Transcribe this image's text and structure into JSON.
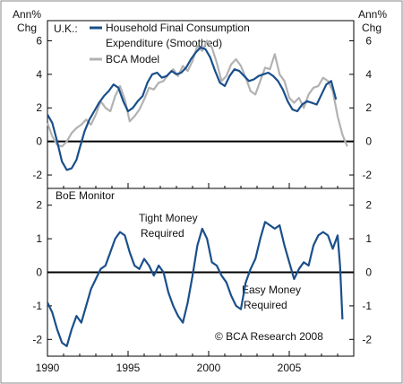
{
  "chart_data": [
    {
      "type": "line",
      "panel": "top",
      "title": "U.K.:",
      "y_unit_left": [
        "Ann%",
        "Chg"
      ],
      "y_unit_right": [
        "Ann%",
        "Chg"
      ],
      "xlim": [
        1990,
        2009
      ],
      "ylim": [
        -2.8,
        7.2
      ],
      "yticks": [
        "-2",
        "0",
        "2",
        "4",
        "6"
      ],
      "zero_line": true,
      "legend_placement": "top-left",
      "series": [
        {
          "name": "Household Final Consumption Expenditure (Smoothed)",
          "color": "#1a4f8b",
          "x": [
            1990.0,
            1990.3,
            1990.6,
            1990.9,
            1991.2,
            1991.5,
            1991.8,
            1992.0,
            1992.3,
            1992.6,
            1992.9,
            1993.2,
            1993.5,
            1993.8,
            1994.1,
            1994.4,
            1994.7,
            1995.0,
            1995.3,
            1995.6,
            1995.9,
            1996.2,
            1996.5,
            1996.8,
            1997.1,
            1997.4,
            1997.7,
            1998.0,
            1998.3,
            1998.6,
            1998.9,
            1999.2,
            1999.5,
            1999.8,
            2000.1,
            2000.4,
            2000.7,
            2001.0,
            2001.3,
            2001.6,
            2001.9,
            2002.2,
            2002.5,
            2002.8,
            2003.1,
            2003.4,
            2003.7,
            2004.0,
            2004.3,
            2004.6,
            2004.9,
            2005.2,
            2005.5,
            2005.8,
            2006.1,
            2006.4,
            2006.7,
            2007.0,
            2007.3,
            2007.6,
            2007.9
          ],
          "y": [
            1.6,
            1.1,
            0.0,
            -1.2,
            -1.7,
            -1.6,
            -1.1,
            -0.4,
            0.6,
            1.3,
            1.8,
            2.3,
            2.7,
            3.0,
            3.4,
            3.2,
            2.4,
            1.8,
            2.0,
            2.4,
            2.7,
            3.5,
            4.0,
            4.1,
            3.8,
            3.9,
            4.2,
            4.0,
            4.1,
            4.4,
            4.9,
            5.3,
            5.6,
            5.5,
            5.0,
            4.2,
            3.5,
            3.3,
            3.9,
            4.3,
            4.2,
            3.9,
            3.6,
            3.7,
            3.9,
            4.0,
            4.1,
            3.9,
            3.6,
            3.1,
            2.4,
            1.9,
            1.8,
            2.2,
            2.4,
            2.3,
            2.2,
            2.8,
            3.4,
            3.6,
            2.5
          ]
        },
        {
          "name": "BCA Model",
          "color": "#b2b2b2",
          "x": [
            1990.0,
            1990.3,
            1990.6,
            1990.9,
            1991.2,
            1991.5,
            1991.8,
            1992.1,
            1992.4,
            1992.7,
            1993.0,
            1993.3,
            1993.6,
            1993.9,
            1994.2,
            1994.5,
            1994.8,
            1995.1,
            1995.4,
            1995.7,
            1996.0,
            1996.3,
            1996.6,
            1996.9,
            1997.2,
            1997.5,
            1997.8,
            1998.1,
            1998.4,
            1998.7,
            1999.0,
            1999.3,
            1999.6,
            1999.9,
            2000.2,
            2000.5,
            2000.8,
            2001.1,
            2001.4,
            2001.7,
            2002.0,
            2002.3,
            2002.6,
            2002.9,
            2003.2,
            2003.5,
            2003.8,
            2004.1,
            2004.4,
            2004.7,
            2005.0,
            2005.3,
            2005.6,
            2005.9,
            2006.2,
            2006.5,
            2006.8,
            2007.1,
            2007.4,
            2007.7,
            2008.0,
            2008.3,
            2008.6
          ],
          "y": [
            1.1,
            0.3,
            -0.2,
            -0.3,
            0.0,
            0.5,
            0.8,
            1.0,
            1.3,
            1.0,
            1.6,
            2.4,
            2.0,
            1.8,
            2.7,
            3.3,
            2.5,
            1.2,
            1.5,
            1.9,
            2.5,
            3.2,
            3.1,
            3.5,
            3.6,
            4.0,
            4.3,
            3.9,
            4.5,
            4.2,
            4.8,
            5.7,
            5.4,
            6.0,
            5.6,
            4.7,
            3.6,
            3.9,
            4.6,
            4.9,
            4.5,
            3.8,
            3.0,
            2.8,
            3.6,
            4.4,
            4.3,
            5.2,
            4.0,
            3.6,
            2.6,
            2.3,
            2.6,
            2.0,
            2.8,
            3.2,
            3.3,
            3.8,
            3.6,
            3.0,
            1.5,
            0.4,
            -0.3
          ]
        }
      ]
    },
    {
      "type": "line",
      "panel": "bottom",
      "title": "BoE Monitor",
      "xlim": [
        1990,
        2009
      ],
      "ylim": [
        -2.5,
        2.5
      ],
      "yticks": [
        "-2",
        "-1",
        "0",
        "1",
        "2"
      ],
      "xticks": [
        "1990",
        "1995",
        "2000",
        "2005"
      ],
      "zero_line": true,
      "annotations": [
        {
          "text": [
            "Tight Money",
            "Required"
          ]
        },
        {
          "text": [
            "Easy Money",
            "Required"
          ]
        },
        {
          "text": [
            "© BCA Research 2008"
          ]
        }
      ],
      "series": [
        {
          "name": "BoE Monitor",
          "color": "#1a4f8b",
          "x": [
            1990.0,
            1990.3,
            1990.6,
            1990.9,
            1991.2,
            1991.5,
            1991.8,
            1992.1,
            1992.4,
            1992.7,
            1993.0,
            1993.3,
            1993.6,
            1993.9,
            1994.2,
            1994.5,
            1994.8,
            1995.1,
            1995.4,
            1995.7,
            1996.0,
            1996.3,
            1996.6,
            1996.9,
            1997.2,
            1997.5,
            1997.8,
            1998.1,
            1998.4,
            1998.7,
            1999.0,
            1999.3,
            1999.6,
            1999.9,
            2000.2,
            2000.5,
            2000.8,
            2001.1,
            2001.4,
            2001.7,
            2002.0,
            2002.3,
            2002.6,
            2002.9,
            2003.2,
            2003.5,
            2003.8,
            2004.1,
            2004.4,
            2004.7,
            2005.0,
            2005.3,
            2005.6,
            2005.9,
            2006.2,
            2006.5,
            2006.8,
            2007.1,
            2007.4,
            2007.7,
            2008.0,
            2008.15,
            2008.3
          ],
          "y": [
            -0.9,
            -1.2,
            -1.7,
            -2.1,
            -2.2,
            -1.7,
            -1.3,
            -1.5,
            -1.0,
            -0.5,
            -0.2,
            0.1,
            0.2,
            0.6,
            1.0,
            1.2,
            1.1,
            0.6,
            0.2,
            0.1,
            0.4,
            0.2,
            -0.1,
            0.2,
            0.0,
            -0.6,
            -1.0,
            -1.3,
            -1.5,
            -0.9,
            -0.1,
            0.8,
            1.3,
            1.0,
            0.3,
            0.2,
            -0.1,
            -0.3,
            -0.7,
            -1.0,
            -1.1,
            -0.3,
            0.1,
            0.4,
            1.0,
            1.5,
            1.4,
            1.3,
            1.4,
            0.8,
            0.3,
            -0.2,
            0.1,
            0.3,
            0.2,
            0.8,
            1.1,
            1.2,
            1.1,
            0.7,
            1.1,
            0.2,
            -1.4
          ]
        }
      ]
    }
  ]
}
